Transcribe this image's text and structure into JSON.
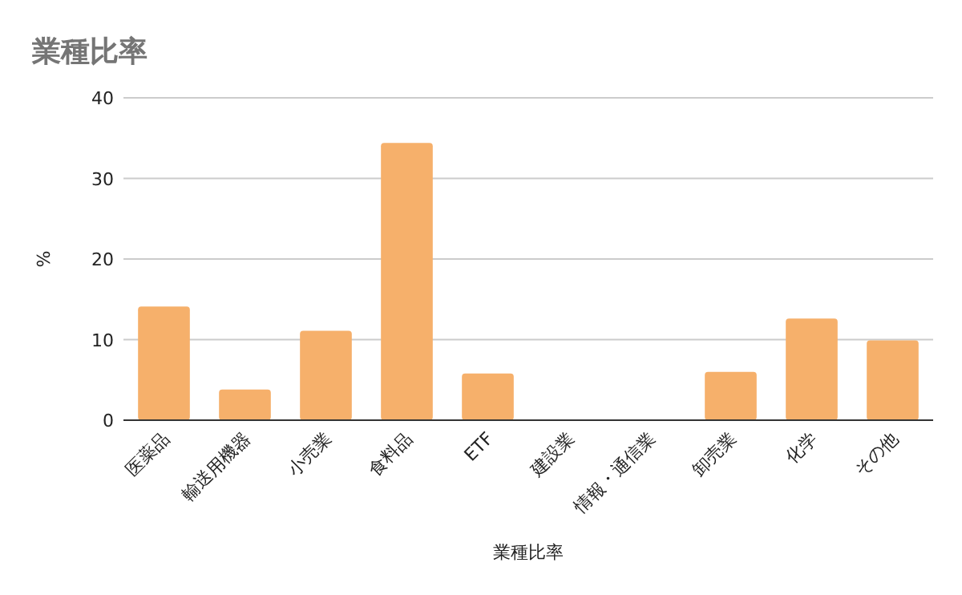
{
  "chart_data": {
    "type": "bar",
    "title": "業種比率",
    "xlabel": "業種比率",
    "ylabel": "%",
    "categories": [
      "医薬品",
      "輸送用機器",
      "小売業",
      "食料品",
      "ETF",
      "建設業",
      "情報・通信業",
      "卸売業",
      "化学",
      "その他"
    ],
    "values": [
      14.1,
      3.8,
      11.1,
      34.4,
      5.8,
      0,
      0,
      6.0,
      12.6,
      9.9
    ],
    "color": "#f6b06b",
    "ylim": [
      0,
      40
    ],
    "yticks": [
      0,
      10,
      20,
      30,
      40
    ],
    "grid": "y"
  }
}
